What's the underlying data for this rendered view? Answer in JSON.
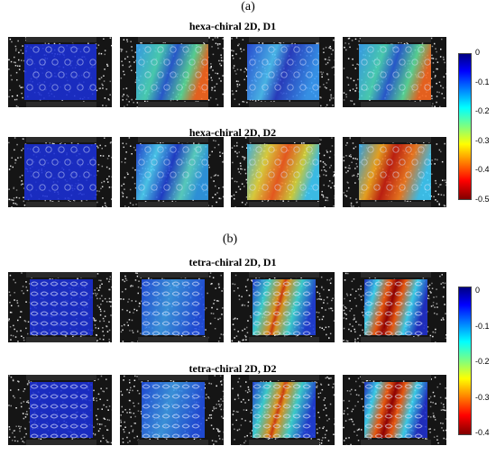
{
  "sections": [
    {
      "label": "(a)",
      "rows": [
        {
          "title": "hexa-chiral 2D, D1",
          "pattern": "hexa",
          "frames": [
            "uniform",
            "mixed",
            "mixed-blue",
            "mixed"
          ]
        },
        {
          "title": "hexa-chiral 2D, D2",
          "pattern": "hexa",
          "frames": [
            "uniform",
            "cyan-bands",
            "warm",
            "warm-strong"
          ]
        }
      ],
      "colorbar": {
        "ticks": [
          "0",
          "-0.1",
          "-0.2",
          "-0.3",
          "-0.4",
          "-0.5"
        ]
      }
    },
    {
      "label": "(b)",
      "rows": [
        {
          "title": "tetra-chiral 2D, D1",
          "pattern": "tetra",
          "frames": [
            "uniform",
            "light",
            "center-hot",
            "center-hot-strong"
          ]
        },
        {
          "title": "tetra-chiral 2D, D2",
          "pattern": "tetra",
          "frames": [
            "uniform",
            "light",
            "center-hot",
            "center-hot-strong"
          ]
        }
      ],
      "colorbar": {
        "ticks": [
          "0",
          "-0.1",
          "-0.2",
          "-0.3",
          "-0.4"
        ]
      }
    }
  ],
  "colors": {
    "background": "#ffffff",
    "frame": "#151515",
    "jet_low": "#00007f",
    "jet_high": "#7f0000"
  }
}
